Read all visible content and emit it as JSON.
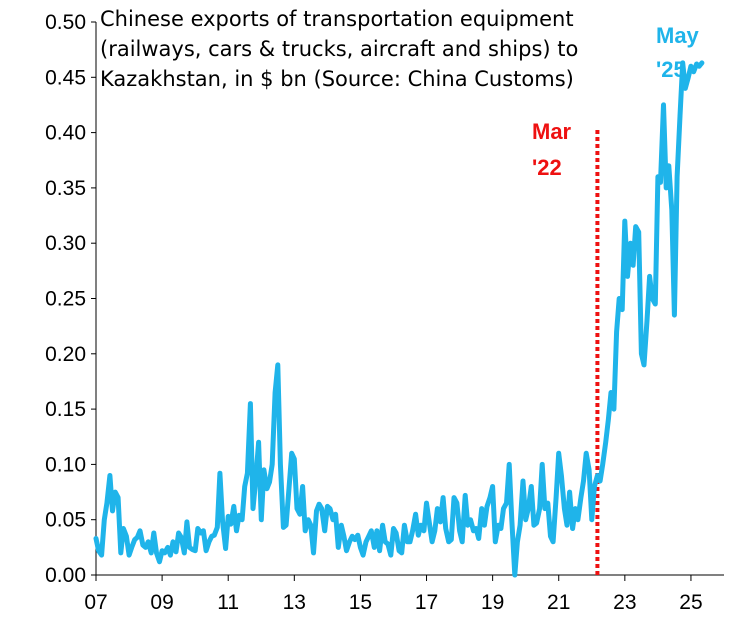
{
  "chart_data": {
    "type": "line",
    "title_lines": [
      "Chinese exports of transportation equipment",
      "(railways, cars & trucks, aircraft and ships) to",
      "Kazakhstan, in $ bn (Source: China Customs)"
    ],
    "xlabel": "",
    "ylabel": "",
    "x_tick_labels": [
      "07",
      "09",
      "11",
      "13",
      "15",
      "17",
      "19",
      "21",
      "23",
      "25"
    ],
    "x_tick_values": [
      2007,
      2009,
      2011,
      2013,
      2015,
      2017,
      2019,
      2021,
      2023,
      2025
    ],
    "y_tick_labels": [
      "0.00",
      "0.05",
      "0.10",
      "0.15",
      "0.20",
      "0.25",
      "0.30",
      "0.35",
      "0.40",
      "0.45",
      "0.50"
    ],
    "xlim": [
      2007,
      2026
    ],
    "ylim": [
      0,
      0.5
    ],
    "grid": false,
    "line_color": "#1fb4ea",
    "marker_color": "#ee1111",
    "annotations": {
      "marker_label_line1": "Mar",
      "marker_label_line2": "'22",
      "marker_x": 2022.17,
      "end_label_line1": "May",
      "end_label_line2": "'25"
    },
    "series": [
      {
        "x": [
          2007.0,
          2007.08,
          2007.17,
          2007.25,
          2007.33,
          2007.42,
          2007.5,
          2007.58,
          2007.67,
          2007.75,
          2007.83,
          2007.92,
          2008.0,
          2008.08,
          2008.17,
          2008.25,
          2008.33,
          2008.42,
          2008.5,
          2008.58,
          2008.67,
          2008.75,
          2008.83,
          2008.92,
          2009.0,
          2009.08,
          2009.17,
          2009.25,
          2009.33,
          2009.42,
          2009.5,
          2009.58,
          2009.67,
          2009.75,
          2009.83,
          2009.92,
          2010.0,
          2010.08,
          2010.17,
          2010.25,
          2010.33,
          2010.42,
          2010.5,
          2010.58,
          2010.67,
          2010.75,
          2010.83,
          2010.92,
          2011.0,
          2011.08,
          2011.17,
          2011.25,
          2011.33,
          2011.42,
          2011.5,
          2011.58,
          2011.67,
          2011.75,
          2011.83,
          2011.92,
          2012.0,
          2012.08,
          2012.17,
          2012.25,
          2012.33,
          2012.42,
          2012.5,
          2012.58,
          2012.67,
          2012.75,
          2012.83,
          2012.92,
          2013.0,
          2013.08,
          2013.17,
          2013.25,
          2013.33,
          2013.42,
          2013.5,
          2013.58,
          2013.67,
          2013.75,
          2013.83,
          2013.92,
          2014.0,
          2014.08,
          2014.17,
          2014.25,
          2014.33,
          2014.42,
          2014.5,
          2014.58,
          2014.67,
          2014.75,
          2014.83,
          2014.92,
          2015.0,
          2015.08,
          2015.17,
          2015.25,
          2015.33,
          2015.42,
          2015.5,
          2015.58,
          2015.67,
          2015.75,
          2015.83,
          2015.92,
          2016.0,
          2016.08,
          2016.17,
          2016.25,
          2016.33,
          2016.42,
          2016.5,
          2016.58,
          2016.67,
          2016.75,
          2016.83,
          2016.92,
          2017.0,
          2017.08,
          2017.17,
          2017.25,
          2017.33,
          2017.42,
          2017.5,
          2017.58,
          2017.67,
          2017.75,
          2017.83,
          2017.92,
          2018.0,
          2018.08,
          2018.17,
          2018.25,
          2018.33,
          2018.42,
          2018.5,
          2018.58,
          2018.67,
          2018.75,
          2018.83,
          2018.92,
          2019.0,
          2019.08,
          2019.17,
          2019.25,
          2019.33,
          2019.42,
          2019.5,
          2019.58,
          2019.67,
          2019.75,
          2019.83,
          2019.92,
          2020.0,
          2020.08,
          2020.17,
          2020.25,
          2020.33,
          2020.42,
          2020.5,
          2020.58,
          2020.67,
          2020.75,
          2020.83,
          2020.92,
          2021.0,
          2021.08,
          2021.17,
          2021.25,
          2021.33,
          2021.42,
          2021.5,
          2021.58,
          2021.67,
          2021.75,
          2021.83,
          2021.92,
          2022.0,
          2022.08,
          2022.17,
          2022.25,
          2022.33,
          2022.42,
          2022.5,
          2022.58,
          2022.67,
          2022.75,
          2022.83,
          2022.92,
          2023.0,
          2023.08,
          2023.17,
          2023.25,
          2023.33,
          2023.42,
          2023.5,
          2023.58,
          2023.67,
          2023.75,
          2023.83,
          2023.92,
          2024.0,
          2024.08,
          2024.17,
          2024.25,
          2024.33,
          2024.42,
          2024.5,
          2024.58,
          2024.67,
          2024.75,
          2024.83,
          2024.92,
          2025.0,
          2025.08,
          2025.17,
          2025.25,
          2025.33
        ],
        "values": [
          0.033,
          0.022,
          0.018,
          0.05,
          0.065,
          0.09,
          0.058,
          0.075,
          0.07,
          0.02,
          0.042,
          0.035,
          0.018,
          0.025,
          0.032,
          0.034,
          0.04,
          0.027,
          0.025,
          0.03,
          0.02,
          0.038,
          0.02,
          0.012,
          0.022,
          0.02,
          0.025,
          0.018,
          0.03,
          0.021,
          0.038,
          0.034,
          0.02,
          0.048,
          0.025,
          0.023,
          0.022,
          0.042,
          0.038,
          0.04,
          0.022,
          0.03,
          0.035,
          0.036,
          0.043,
          0.092,
          0.048,
          0.024,
          0.053,
          0.046,
          0.062,
          0.04,
          0.054,
          0.05,
          0.08,
          0.092,
          0.155,
          0.06,
          0.085,
          0.12,
          0.05,
          0.095,
          0.078,
          0.084,
          0.1,
          0.165,
          0.19,
          0.1,
          0.043,
          0.045,
          0.075,
          0.11,
          0.105,
          0.06,
          0.055,
          0.08,
          0.04,
          0.05,
          0.045,
          0.02,
          0.058,
          0.064,
          0.06,
          0.04,
          0.062,
          0.06,
          0.05,
          0.055,
          0.025,
          0.045,
          0.035,
          0.022,
          0.03,
          0.035,
          0.032,
          0.036,
          0.025,
          0.018,
          0.03,
          0.035,
          0.04,
          0.025,
          0.04,
          0.022,
          0.045,
          0.03,
          0.028,
          0.018,
          0.042,
          0.038,
          0.022,
          0.02,
          0.045,
          0.03,
          0.03,
          0.04,
          0.055,
          0.036,
          0.045,
          0.04,
          0.065,
          0.048,
          0.03,
          0.04,
          0.06,
          0.048,
          0.07,
          0.042,
          0.03,
          0.032,
          0.07,
          0.065,
          0.04,
          0.03,
          0.072,
          0.045,
          0.05,
          0.04,
          0.042,
          0.033,
          0.06,
          0.045,
          0.062,
          0.07,
          0.08,
          0.03,
          0.045,
          0.042,
          0.06,
          0.065,
          0.1,
          0.05,
          0.0,
          0.03,
          0.045,
          0.085,
          0.05,
          0.06,
          0.08,
          0.045,
          0.047,
          0.06,
          0.1,
          0.06,
          0.065,
          0.035,
          0.03,
          0.07,
          0.11,
          0.09,
          0.06,
          0.045,
          0.075,
          0.042,
          0.06,
          0.05,
          0.07,
          0.085,
          0.11,
          0.095,
          0.05,
          0.08,
          0.09,
          0.085,
          0.1,
          0.12,
          0.14,
          0.165,
          0.15,
          0.22,
          0.25,
          0.24,
          0.32,
          0.27,
          0.3,
          0.28,
          0.315,
          0.31,
          0.2,
          0.19,
          0.23,
          0.27,
          0.25,
          0.245,
          0.36,
          0.355,
          0.425,
          0.35,
          0.37,
          0.33,
          0.235,
          0.36,
          0.415,
          0.463,
          0.44,
          0.45,
          0.46,
          0.455,
          0.462,
          0.46,
          0.463
        ]
      }
    ]
  }
}
